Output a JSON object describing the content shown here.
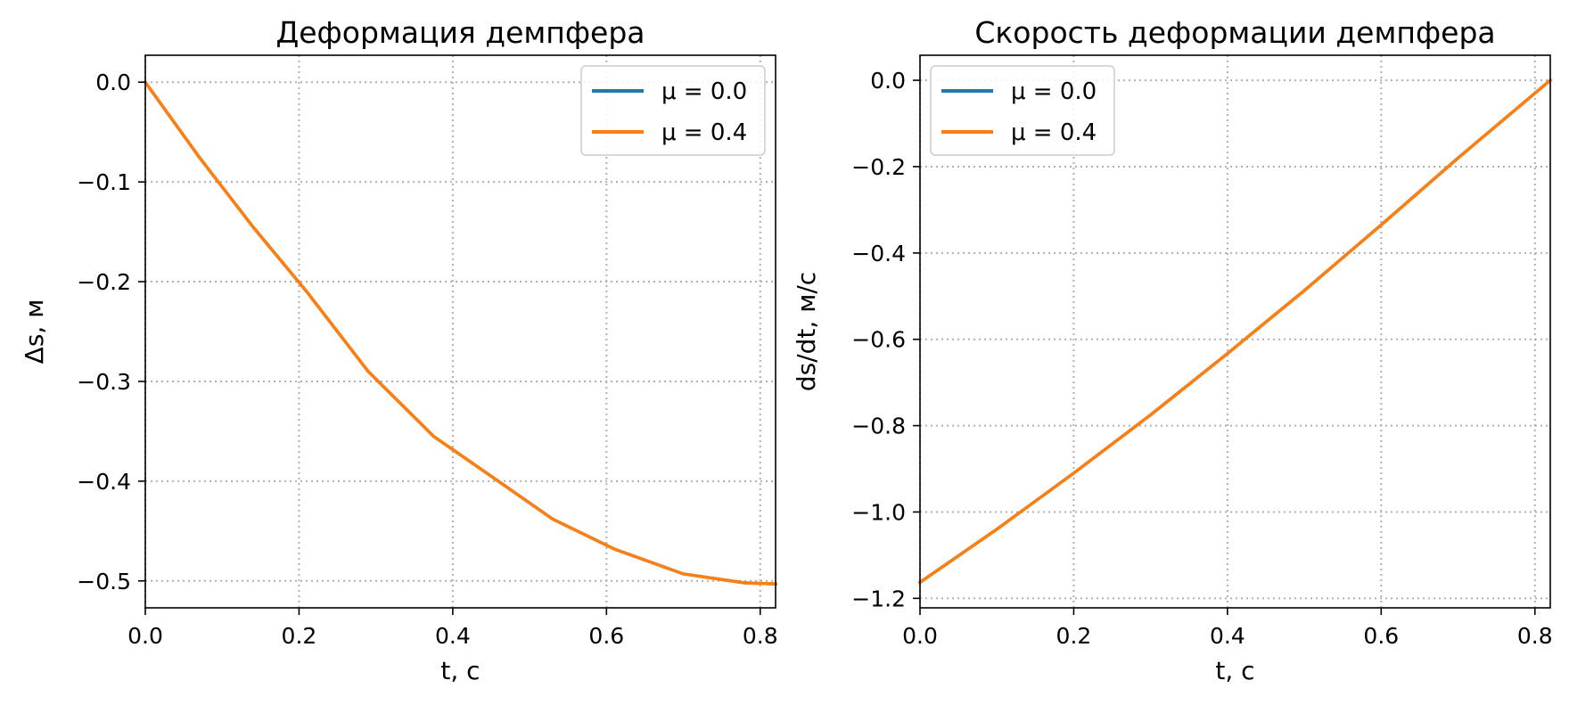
{
  "chart_data": [
    {
      "type": "line",
      "title": "Деформация демпфера",
      "xlabel": "t, с",
      "ylabel": "Δs, м",
      "xlim": [
        0.0,
        0.82
      ],
      "ylim": [
        -0.527,
        0.027
      ],
      "xticks": [
        0.0,
        0.2,
        0.4,
        0.6,
        0.8
      ],
      "xtick_labels": [
        "0.0",
        "0.2",
        "0.4",
        "0.6",
        "0.8"
      ],
      "yticks": [
        0.0,
        -0.1,
        -0.2,
        -0.3,
        -0.4,
        -0.5
      ],
      "ytick_labels": [
        "0.0",
        "−0.1",
        "−0.2",
        "−0.3",
        "−0.4",
        "−0.5"
      ],
      "grid": true,
      "legend": "top-right",
      "series": [
        {
          "name": "μ = 0.0",
          "color": "#1f77b4",
          "x": [
            0.0,
            0.07,
            0.14,
            0.21,
            0.29,
            0.375,
            0.45,
            0.53,
            0.61,
            0.7,
            0.78,
            0.82
          ],
          "y": [
            0.0,
            -0.075,
            -0.145,
            -0.21,
            -0.29,
            -0.355,
            -0.395,
            -0.438,
            -0.468,
            -0.493,
            -0.502,
            -0.503
          ]
        },
        {
          "name": "μ = 0.4",
          "color": "#ff7f0e",
          "x": [
            0.0,
            0.07,
            0.14,
            0.21,
            0.29,
            0.375,
            0.45,
            0.53,
            0.61,
            0.7,
            0.78,
            0.82
          ],
          "y": [
            0.0,
            -0.075,
            -0.145,
            -0.21,
            -0.29,
            -0.355,
            -0.395,
            -0.438,
            -0.468,
            -0.493,
            -0.502,
            -0.503
          ]
        }
      ]
    },
    {
      "type": "line",
      "title": "Скорость деформации демпфера",
      "xlabel": "t, с",
      "ylabel": "ds/dt, м/с",
      "xlim": [
        0.0,
        0.82
      ],
      "ylim": [
        -1.222,
        0.058
      ],
      "xticks": [
        0.0,
        0.2,
        0.4,
        0.6,
        0.8
      ],
      "xtick_labels": [
        "0.0",
        "0.2",
        "0.4",
        "0.6",
        "0.8"
      ],
      "yticks": [
        0.0,
        -0.2,
        -0.4,
        -0.6,
        -0.8,
        -1.0,
        -1.2
      ],
      "ytick_labels": [
        "0.0",
        "−0.2",
        "−0.4",
        "−0.6",
        "−0.8",
        "−1.0",
        "−1.2"
      ],
      "grid": true,
      "legend": "top-left",
      "series": [
        {
          "name": "μ = 0.0",
          "color": "#1f77b4",
          "x": [
            0.0,
            0.1,
            0.2,
            0.3,
            0.4,
            0.5,
            0.6,
            0.7,
            0.82
          ],
          "y": [
            -1.163,
            -1.04,
            -0.91,
            -0.775,
            -0.633,
            -0.487,
            -0.335,
            -0.18,
            0.0
          ]
        },
        {
          "name": "μ = 0.4",
          "color": "#ff7f0e",
          "x": [
            0.0,
            0.1,
            0.2,
            0.3,
            0.4,
            0.5,
            0.6,
            0.7,
            0.82
          ],
          "y": [
            -1.163,
            -1.04,
            -0.91,
            -0.775,
            -0.633,
            -0.487,
            -0.335,
            -0.18,
            0.0
          ]
        }
      ]
    }
  ]
}
